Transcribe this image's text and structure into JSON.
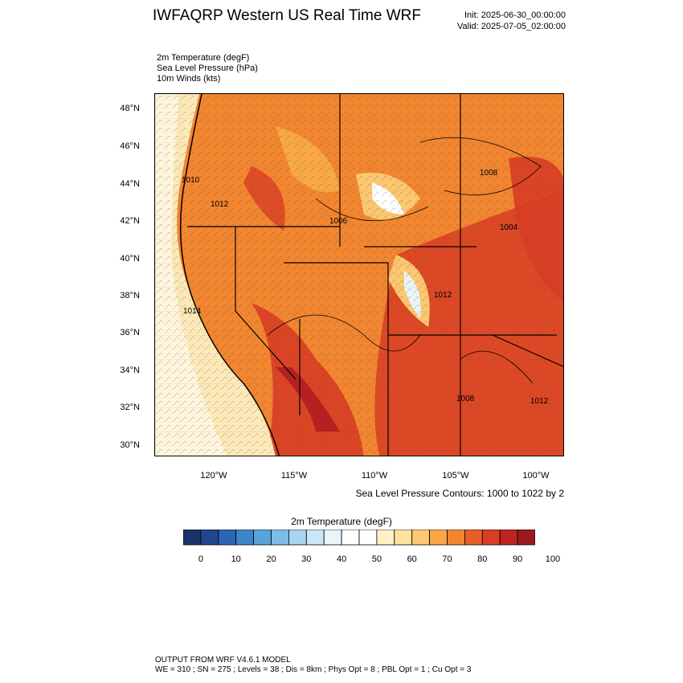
{
  "title": "IWFAQRP Western US Real Time WRF",
  "init": "Init: 2025-06-30_00:00:00",
  "valid": "Valid: 2025-07-05_02:00:00",
  "fields": [
    "2m Temperature   (degF)",
    "Sea Level Pressure   (hPa)",
    "10m Winds   (kts)"
  ],
  "lat_labels": [
    "48°N",
    "46°N",
    "44°N",
    "42°N",
    "40°N",
    "38°N",
    "36°N",
    "34°N",
    "32°N",
    "30°N"
  ],
  "lon_labels": [
    "120°W",
    "115°W",
    "110°W",
    "105°W",
    "100°W"
  ],
  "contour_note": "Sea Level Pressure Contours: 1000 to 1022 by 2",
  "contour_labels": [
    "1010",
    "1012",
    "1006",
    "1008",
    "1004",
    "1012",
    "1008",
    "1012",
    "1014"
  ],
  "colorbar": {
    "title": "2m Temperature  (degF)",
    "ticks": [
      "0",
      "10",
      "20",
      "30",
      "40",
      "50",
      "60",
      "70",
      "80",
      "90",
      "100"
    ],
    "colors": [
      "#1a3468",
      "#22478f",
      "#2a66b4",
      "#3f86c8",
      "#5aa3d8",
      "#7dbde6",
      "#a6d6f2",
      "#cce6f6",
      "#e9f4fb",
      "#ffffff",
      "#ffffff",
      "#fff0c8",
      "#fde3a0",
      "#fcc870",
      "#f9a845",
      "#f3862f",
      "#e85e28",
      "#d93d23",
      "#c02222",
      "#9a1b1b"
    ]
  },
  "map_colors": {
    "ocean_cool": "#fde9b8",
    "ocean_warm": "#fff5dc",
    "land_warm": "#f3862f",
    "land_hot": "#d93d23",
    "land_hottest": "#b81f1f",
    "mountain_cool": "#ffffff"
  },
  "footer": {
    "line1": "OUTPUT FROM WRF V4.6.1 MODEL",
    "line2": "WE = 310 ; SN = 275 ; Levels = 38 ; Dis = 8km ; Phys Opt = 8 ; PBL Opt = 1 ; Cu Opt = 3"
  }
}
